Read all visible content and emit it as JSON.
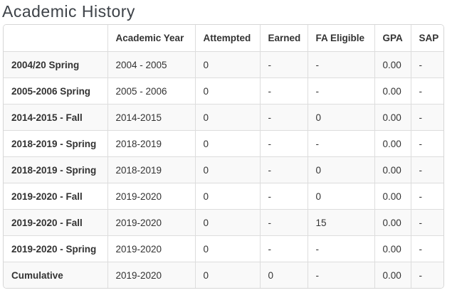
{
  "page": {
    "title": "Academic History"
  },
  "colors": {
    "border": "#d6d6d6",
    "inner_border": "#dddddd",
    "stripe": "#f9f9f9",
    "text": "#333333",
    "title": "#3d4248"
  },
  "table": {
    "columns": [
      "",
      "Academic Year",
      "Attempted",
      "Earned",
      "FA Eligible",
      "GPA",
      "SAP"
    ],
    "column_keys": [
      "term",
      "academic-year",
      "attempted",
      "earned",
      "fa-eligible",
      "gpa",
      "sap"
    ],
    "rows": [
      [
        "2004/20 Spring",
        "2004 - 2005",
        "0",
        "-",
        "-",
        "0.00",
        "-"
      ],
      [
        "2005-2006 Spring",
        "2005 - 2006",
        "0",
        "-",
        "-",
        "0.00",
        "-"
      ],
      [
        "2014-2015 - Fall",
        "2014-2015",
        "0",
        "-",
        "0",
        "0.00",
        "-"
      ],
      [
        "2018-2019 - Spring",
        "2018-2019",
        "0",
        "-",
        "-",
        "0.00",
        "-"
      ],
      [
        "2018-2019 - Spring",
        "2018-2019",
        "0",
        "-",
        "0",
        "0.00",
        "-"
      ],
      [
        "2019-2020 - Fall",
        "2019-2020",
        "0",
        "-",
        "0",
        "0.00",
        "-"
      ],
      [
        "2019-2020 - Fall",
        "2019-2020",
        "0",
        "-",
        "15",
        "0.00",
        "-"
      ],
      [
        "2019-2020 - Spring",
        "2019-2020",
        "0",
        "-",
        "-",
        "0.00",
        "-"
      ],
      [
        "Cumulative",
        "2019-2020",
        "0",
        "0",
        "-",
        "0.00",
        "-"
      ]
    ]
  }
}
